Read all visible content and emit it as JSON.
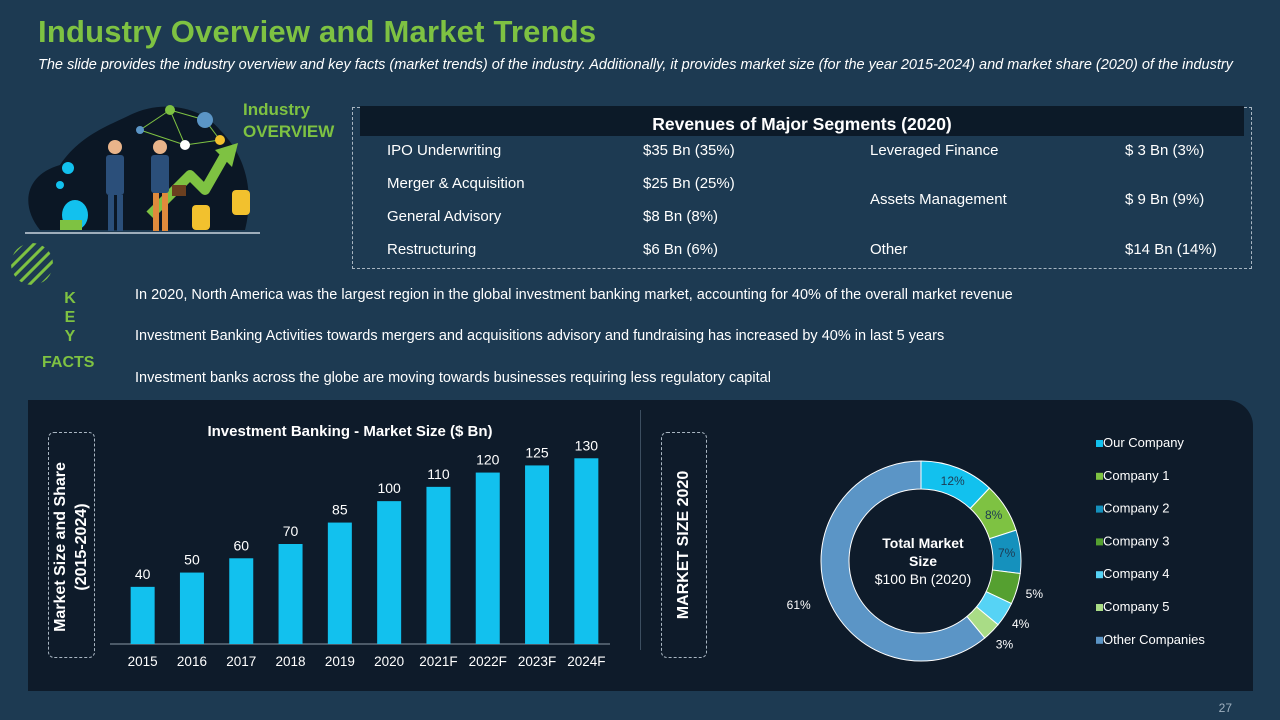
{
  "slide": {
    "title": "Industry Overview and Market Trends",
    "subtitle": "The slide provides the industry overview and key facts (market trends) of the industry. Additionally, it provides market size (for the year 2015-2024) and market share (2020) of the industry",
    "page_number": "27"
  },
  "overview": {
    "line1": "Industry",
    "line2": "OVERVIEW"
  },
  "revenues": {
    "title": "Revenues of Major Segments (2020)",
    "left": [
      {
        "name": "IPO Underwriting",
        "value": "$35 Bn (35%)"
      },
      {
        "name": "Merger & Acquisition",
        "value": "$25 Bn (25%)"
      },
      {
        "name": "General Advisory",
        "value": "$8 Bn (8%)"
      },
      {
        "name": "Restructuring",
        "value": "$6 Bn (6%)"
      }
    ],
    "right": [
      {
        "name": "Leveraged Finance",
        "value": "$ 3 Bn (3%)"
      },
      {
        "name": "Assets Management",
        "value": "$ 9 Bn (9%)"
      },
      {
        "name": "Other",
        "value": "$14 Bn (14%)"
      }
    ]
  },
  "key_facts": {
    "letters": [
      "K",
      "E",
      "Y"
    ],
    "word": "FACTS",
    "items": [
      "In 2020, North America was the largest region in the global investment banking market, accounting for 40% of the overall market revenue",
      "Investment  Banking Activities towards mergers and acquisitions advisory and fundraising has increased by 40% in last 5 years",
      "Investment  banks across the globe are moving towards businesses requiring less regulatory capital"
    ]
  },
  "labels": {
    "market_size_share_line1": "Market Size and Share",
    "market_size_share_line2": "(2015-2024)",
    "market_size_2020": "MARKET SIZE 2020"
  },
  "donut_center": {
    "line1": "Total Market",
    "line2": "Size",
    "line3": "$100 Bn (2020)"
  },
  "colors": {
    "title_green": "#7ec242",
    "bar": "#12c1ee",
    "background": "#1d3a52",
    "panel": "#0e1b2a"
  },
  "chart_data": [
    {
      "type": "bar",
      "title": "Investment  Banking  - Market  Size  ($ Bn)",
      "categories": [
        "2015",
        "2016",
        "2017",
        "2018",
        "2019",
        "2020",
        "2021F",
        "2022F",
        "2023F",
        "2024F"
      ],
      "values": [
        40,
        50,
        60,
        70,
        85,
        100,
        110,
        120,
        125,
        130
      ],
      "xlabel": "",
      "ylabel": "",
      "ylim": [
        0,
        140
      ]
    },
    {
      "type": "pie",
      "title": "",
      "labels": [
        "Our Company",
        "Company 1",
        "Company 2",
        "Company 3",
        "Company 4",
        "Company 5",
        "Other Companies"
      ],
      "values": [
        12,
        8,
        7,
        5,
        4,
        3,
        61
      ],
      "colors": [
        "#12c1ee",
        "#7ec242",
        "#1591bd",
        "#55a030",
        "#56d3f5",
        "#a9dc86",
        "#5b95c6"
      ]
    }
  ]
}
